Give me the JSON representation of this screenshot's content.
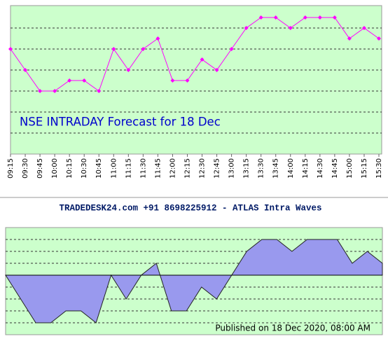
{
  "chart_data": [
    {
      "type": "line",
      "title": "NSE INTRADAY Forecast for 18 Dec",
      "categories": [
        "09:15",
        "09:30",
        "09:45",
        "10:00",
        "10:15",
        "10:30",
        "10:45",
        "11:00",
        "11:15",
        "11:30",
        "11:45",
        "12:00",
        "12:15",
        "12:30",
        "12:45",
        "13:00",
        "13:15",
        "13:30",
        "13:45",
        "14:00",
        "14:15",
        "14:30",
        "14:45",
        "15:00",
        "15:15",
        "15:30"
      ],
      "values": [
        5,
        4,
        3,
        3,
        3.5,
        3.5,
        3,
        5,
        4,
        5,
        5.5,
        3.5,
        3.5,
        4.5,
        4,
        5,
        6,
        6.5,
        6.5,
        6,
        6.5,
        6.5,
        6.5,
        5.5,
        6,
        5.5
      ],
      "color": "#ff00ff",
      "ylim": [
        0,
        7
      ],
      "grid_lines": [
        1,
        2,
        3,
        4,
        5,
        6
      ]
    },
    {
      "type": "area",
      "title": "TRADEDESK24.com +91 8698225912 - ATLAS Intra Waves",
      "values": [
        0,
        -2,
        -4,
        -4,
        -3,
        -3,
        -4,
        0,
        -2,
        0,
        1,
        -3,
        -3,
        -1,
        -2,
        0,
        2,
        3,
        3,
        2,
        3,
        3,
        3,
        1,
        2,
        1
      ],
      "color": "#9999ee",
      "ylim": [
        -5,
        4
      ],
      "grid_lines": [
        -4,
        -3,
        -2,
        -1,
        1,
        2,
        3
      ],
      "annotation": "Published on 18 Dec 2020, 08:00 AM"
    }
  ]
}
